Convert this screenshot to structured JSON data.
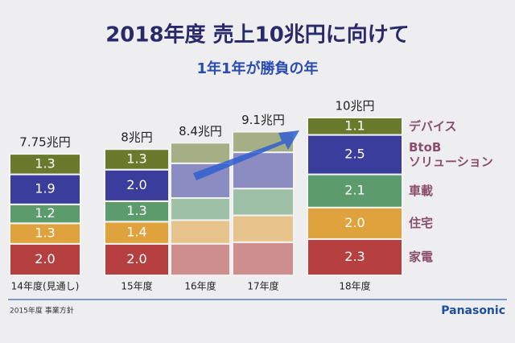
{
  "chart_data": {
    "type": "stacked_bar",
    "title": "2018年度 売上10兆円に向けて",
    "subtitle": "1年1年が勝負の年",
    "categories": [
      "14年度(見通し)",
      "15年度",
      "16年度",
      "17年度",
      "18年度"
    ],
    "series": [
      {
        "name": "家電",
        "color": "#b5403f",
        "values": [
          2.0,
          2.0,
          2.0,
          2.1,
          2.3
        ],
        "value_labels": [
          "2.0",
          "2.0",
          null,
          null,
          "2.3"
        ]
      },
      {
        "name": "住宅",
        "color": "#e0a23c",
        "values": [
          1.3,
          1.4,
          1.5,
          1.7,
          2.0
        ],
        "value_labels": [
          "1.3",
          "1.4",
          null,
          null,
          "2.0"
        ]
      },
      {
        "name": "車載",
        "color": "#5c9c6c",
        "values": [
          1.2,
          1.3,
          1.4,
          1.7,
          2.1
        ],
        "value_labels": [
          "1.2",
          "1.3",
          null,
          null,
          "2.1"
        ]
      },
      {
        "name": "BtoB\nソリューション",
        "color": "#3b3d9c",
        "values": [
          1.9,
          2.0,
          2.2,
          2.3,
          2.5
        ],
        "value_labels": [
          "1.9",
          "2.0",
          null,
          null,
          "2.5"
        ]
      },
      {
        "name": "デバイス",
        "color": "#6a7a2c",
        "values": [
          1.3,
          1.3,
          1.3,
          1.3,
          1.1
        ],
        "value_labels": [
          "1.3",
          "1.3",
          null,
          null,
          "1.1"
        ]
      }
    ],
    "totals": [
      7.75,
      8,
      8.4,
      9.1,
      10
    ],
    "total_labels": [
      "7.75兆円",
      "8兆円",
      "8.4兆円",
      "9.1兆円",
      "10兆円"
    ],
    "footer_left": "2015年度 事業方針",
    "footer_right": "Panasonic"
  }
}
